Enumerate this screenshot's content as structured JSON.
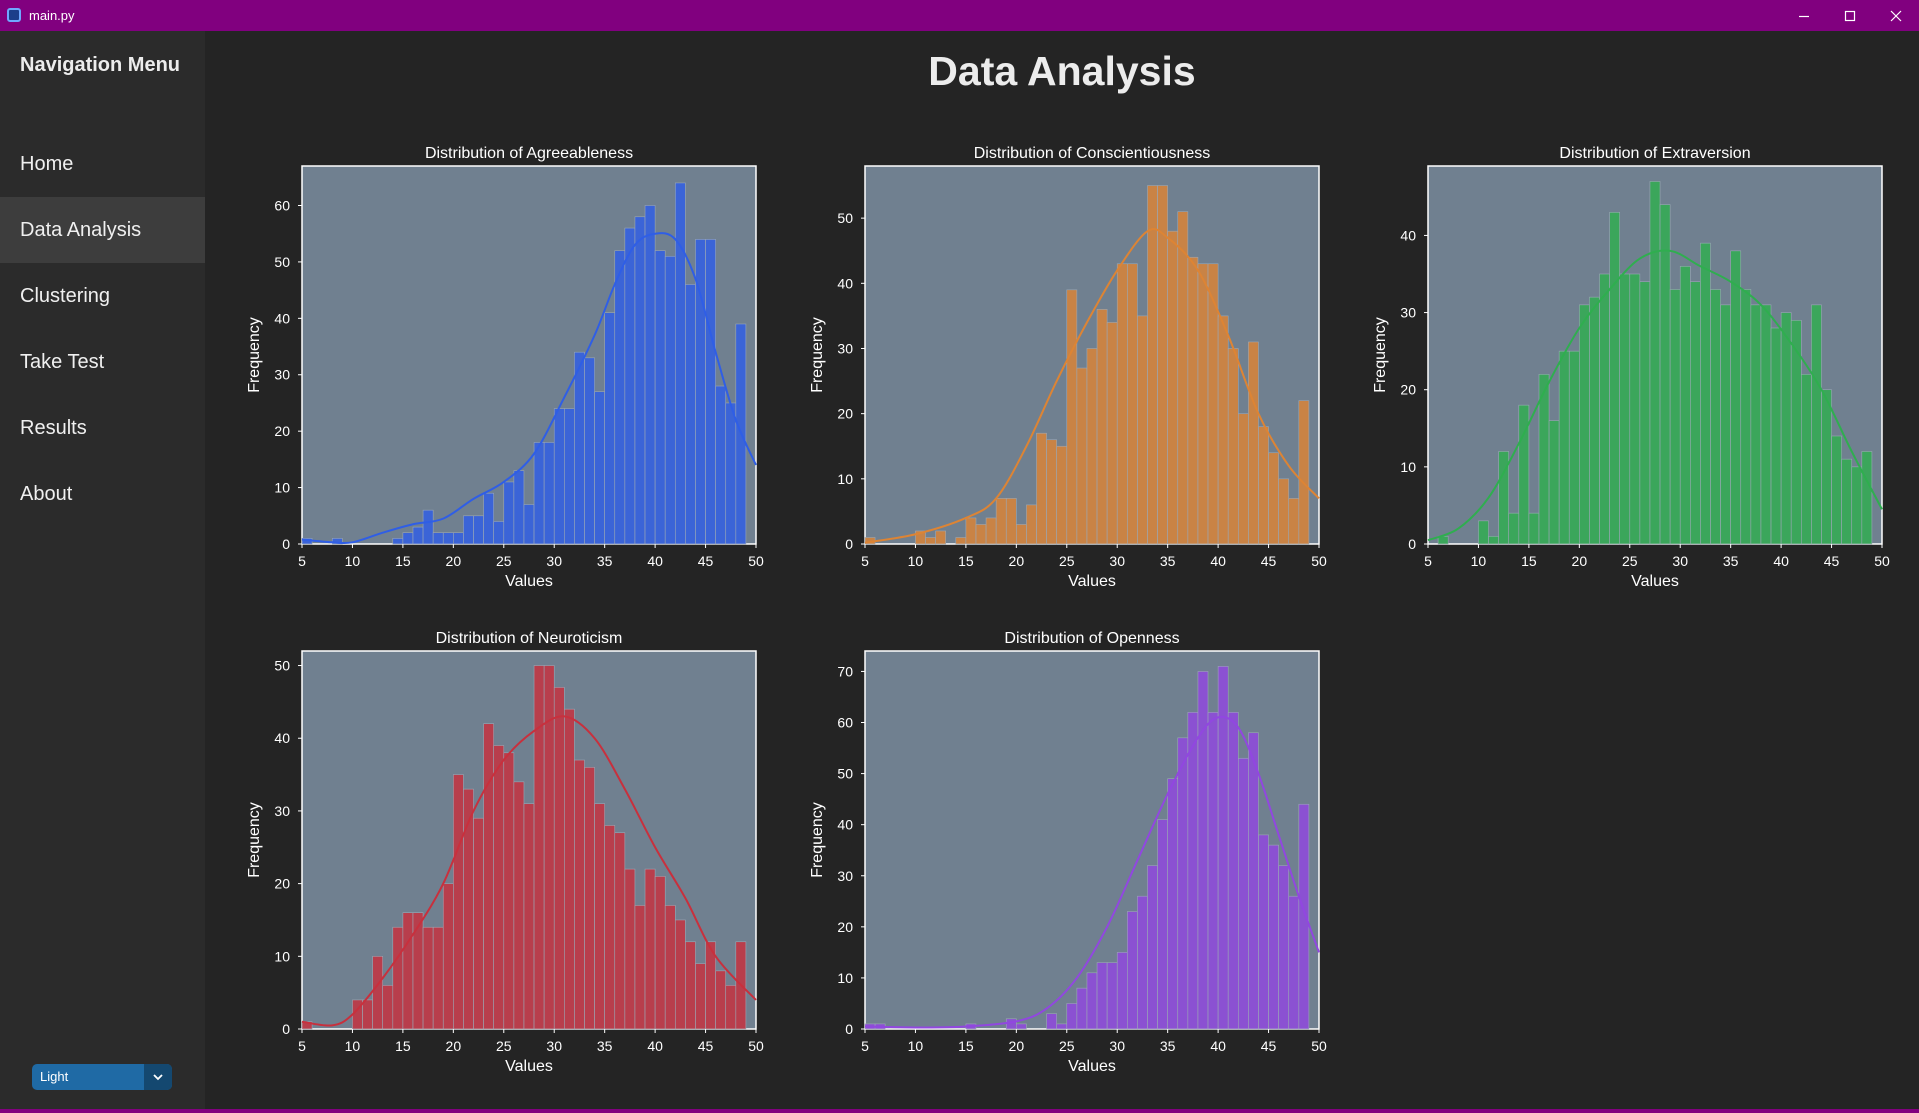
{
  "window": {
    "title": "main.py",
    "minimize_icon": "minimize-icon",
    "maximize_icon": "maximize-icon",
    "close_icon": "close-icon"
  },
  "sidebar": {
    "title": "Navigation Menu",
    "items": [
      {
        "label": "Home"
      },
      {
        "label": "Data Analysis",
        "active": true
      },
      {
        "label": "Clustering"
      },
      {
        "label": "Take Test"
      },
      {
        "label": "Results"
      },
      {
        "label": "About"
      }
    ],
    "theme": {
      "value": "Light",
      "icon": "chevron-down-icon"
    }
  },
  "page": {
    "title": "Data Analysis"
  },
  "colors": {
    "titlebar": "#81007f",
    "sidebar": "#2b2b2b",
    "background": "#242424",
    "plot_bg": "#708090",
    "agreeableness": "#2f5ee6",
    "conscientiousness": "#dd8434",
    "extraversion": "#2fae4f",
    "neuroticism": "#c8303d",
    "openness": "#9147e0"
  },
  "chart_data": [
    {
      "type": "bar",
      "title": "Distribution of Agreeableness",
      "xlabel": "Values",
      "ylabel": "Frequency",
      "xlim": [
        5,
        50
      ],
      "ylim": [
        0,
        67
      ],
      "xticks": [
        5,
        10,
        15,
        20,
        25,
        30,
        35,
        40,
        45,
        50
      ],
      "yticks": [
        0,
        10,
        20,
        30,
        40,
        50,
        60
      ],
      "bin_start": 5,
      "bin_width": 1,
      "color": "#2f5ee6",
      "values": [
        1,
        0,
        0,
        1,
        0,
        0,
        0,
        0,
        0,
        1,
        2,
        3,
        6,
        2,
        2,
        2,
        5,
        5,
        9,
        4,
        11,
        13,
        7,
        18,
        18,
        24,
        24,
        34,
        33,
        27,
        41,
        52,
        56,
        58,
        60,
        52,
        51,
        64,
        46,
        54,
        54,
        28,
        25,
        39
      ],
      "kde": [
        [
          5,
          0.8
        ],
        [
          8,
          0.3
        ],
        [
          10,
          0.3
        ],
        [
          13,
          2
        ],
        [
          16,
          3.5
        ],
        [
          19,
          4.5
        ],
        [
          22,
          8
        ],
        [
          25,
          11
        ],
        [
          28,
          16
        ],
        [
          31,
          26
        ],
        [
          34,
          37
        ],
        [
          36,
          46
        ],
        [
          38,
          53
        ],
        [
          40,
          55
        ],
        [
          42,
          54
        ],
        [
          44,
          47
        ],
        [
          46,
          34
        ],
        [
          48,
          22
        ],
        [
          50,
          14
        ]
      ]
    },
    {
      "type": "bar",
      "title": "Distribution of Conscientiousness",
      "xlabel": "Values",
      "ylabel": "Frequency",
      "xlim": [
        5,
        50
      ],
      "ylim": [
        0,
        58
      ],
      "xticks": [
        5,
        10,
        15,
        20,
        25,
        30,
        35,
        40,
        45,
        50
      ],
      "yticks": [
        0,
        10,
        20,
        30,
        40,
        50
      ],
      "bin_start": 5,
      "bin_width": 1,
      "color": "#dd8434",
      "values": [
        1,
        0,
        0,
        0,
        0,
        2,
        1,
        2,
        0,
        1,
        4,
        3,
        4,
        7,
        7,
        3,
        6,
        17,
        16,
        15,
        39,
        27,
        30,
        36,
        34,
        43,
        43,
        35,
        55,
        55,
        48,
        51,
        44,
        43,
        43,
        35,
        30,
        20,
        31,
        18,
        14,
        10,
        7,
        22
      ],
      "kde": [
        [
          5,
          0.2
        ],
        [
          10,
          1.5
        ],
        [
          15,
          4
        ],
        [
          18,
          7
        ],
        [
          21,
          15
        ],
        [
          24,
          25
        ],
        [
          27,
          34
        ],
        [
          30,
          42
        ],
        [
          33,
          48
        ],
        [
          35,
          47
        ],
        [
          38,
          42
        ],
        [
          41,
          32
        ],
        [
          44,
          20
        ],
        [
          47,
          12
        ],
        [
          50,
          7
        ]
      ]
    },
    {
      "type": "bar",
      "title": "Distribution of Extraversion",
      "xlabel": "Values",
      "ylabel": "Frequency",
      "xlim": [
        5,
        50
      ],
      "ylim": [
        0,
        49
      ],
      "xticks": [
        5,
        10,
        15,
        20,
        25,
        30,
        35,
        40,
        45,
        50
      ],
      "yticks": [
        0,
        10,
        20,
        30,
        40
      ],
      "bin_start": 5,
      "bin_width": 1,
      "color": "#2fae4f",
      "values": [
        0,
        1,
        0,
        0,
        0,
        3,
        1,
        12,
        4,
        18,
        4,
        22,
        16,
        25,
        25,
        31,
        32,
        35,
        43,
        35,
        35,
        34,
        47,
        44,
        33,
        36,
        34,
        39,
        33,
        31,
        38,
        33,
        31,
        31,
        28,
        30,
        29,
        22,
        31,
        20,
        14,
        11,
        10,
        12
      ],
      "kde": [
        [
          5,
          0.5
        ],
        [
          8,
          2
        ],
        [
          11,
          6
        ],
        [
          14,
          13
        ],
        [
          17,
          21
        ],
        [
          20,
          28
        ],
        [
          23,
          33
        ],
        [
          26,
          37
        ],
        [
          29,
          38
        ],
        [
          32,
          36
        ],
        [
          35,
          34
        ],
        [
          38,
          31
        ],
        [
          41,
          26
        ],
        [
          44,
          20
        ],
        [
          47,
          12
        ],
        [
          50,
          4.5
        ]
      ]
    },
    {
      "type": "bar",
      "title": "Distribution of Neuroticism",
      "xlabel": "Values",
      "ylabel": "Frequency",
      "xlim": [
        5,
        50
      ],
      "ylim": [
        0,
        52
      ],
      "xticks": [
        5,
        10,
        15,
        20,
        25,
        30,
        35,
        40,
        45,
        50
      ],
      "yticks": [
        0,
        10,
        20,
        30,
        40,
        50
      ],
      "bin_start": 5,
      "bin_width": 1,
      "color": "#c8303d",
      "values": [
        1,
        0,
        0,
        0,
        0,
        4,
        4,
        10,
        6,
        14,
        16,
        16,
        14,
        14,
        20,
        35,
        33,
        29,
        42,
        39,
        38,
        34,
        31,
        50,
        50,
        47,
        44,
        37,
        36,
        31,
        28,
        27,
        22,
        17,
        22,
        21,
        17,
        15,
        12,
        9,
        12,
        8,
        6,
        12
      ],
      "kde": [
        [
          5,
          1
        ],
        [
          8,
          0.5
        ],
        [
          10,
          2
        ],
        [
          13,
          7
        ],
        [
          16,
          13
        ],
        [
          19,
          20
        ],
        [
          22,
          30
        ],
        [
          25,
          37
        ],
        [
          28,
          41
        ],
        [
          31,
          43
        ],
        [
          34,
          40
        ],
        [
          37,
          33
        ],
        [
          40,
          25
        ],
        [
          43,
          18
        ],
        [
          46,
          10
        ],
        [
          50,
          4
        ]
      ]
    },
    {
      "type": "bar",
      "title": "Distribution of Openness",
      "xlabel": "Values",
      "ylabel": "Frequency",
      "xlim": [
        5,
        50
      ],
      "ylim": [
        0,
        74
      ],
      "xticks": [
        5,
        10,
        15,
        20,
        25,
        30,
        35,
        40,
        45,
        50
      ],
      "yticks": [
        0,
        10,
        20,
        30,
        40,
        50,
        60,
        70
      ],
      "bin_start": 5,
      "bin_width": 1,
      "color": "#9147e0",
      "values": [
        1,
        1,
        0,
        0,
        0,
        0,
        0,
        0,
        0,
        0,
        1,
        0,
        0,
        0,
        2,
        1,
        0,
        0,
        3,
        1,
        5,
        8,
        11,
        13,
        13,
        15,
        23,
        26,
        32,
        41,
        49,
        57,
        62,
        70,
        62,
        71,
        62,
        53,
        58,
        38,
        36,
        32,
        26,
        44
      ],
      "kde": [
        [
          5,
          0.5
        ],
        [
          10,
          0.3
        ],
        [
          15,
          0.5
        ],
        [
          20,
          1.5
        ],
        [
          23,
          4
        ],
        [
          26,
          10
        ],
        [
          29,
          20
        ],
        [
          32,
          33
        ],
        [
          35,
          46
        ],
        [
          38,
          57
        ],
        [
          40,
          61
        ],
        [
          42,
          59
        ],
        [
          44,
          50
        ],
        [
          46,
          38
        ],
        [
          48,
          26
        ],
        [
          50,
          15
        ]
      ]
    }
  ]
}
